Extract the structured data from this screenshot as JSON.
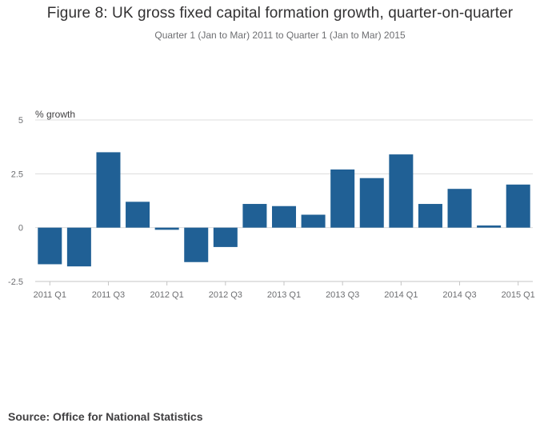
{
  "title": "Figure 8: UK gross fixed capital formation growth, quarter-on-quarter",
  "subtitle": "Quarter 1 (Jan to Mar) 2011 to Quarter 1 (Jan to Mar) 2015",
  "source": "Source: Office for National Statistics",
  "colors": {
    "bar": "#206095",
    "grid": "#dcdcdc",
    "axis_text": "#6d6e71"
  },
  "chart_data": {
    "type": "bar",
    "title": "Figure 8: UK gross fixed capital formation growth, quarter-on-quarter",
    "subtitle": "Quarter 1 (Jan to Mar) 2011 to Quarter 1 (Jan to Mar) 2015",
    "ylabel": "% growth",
    "xlabel": "",
    "ylim": [
      -2.5,
      5
    ],
    "yticks": [
      5,
      2.5,
      0,
      -2.5
    ],
    "ytick_labels": [
      "5",
      "2.5",
      "0",
      "-2.5"
    ],
    "grid": true,
    "categories": [
      "2011 Q1",
      "2011 Q2",
      "2011 Q3",
      "2011 Q4",
      "2012 Q1",
      "2012 Q2",
      "2012 Q3",
      "2012 Q4",
      "2013 Q1",
      "2013 Q2",
      "2013 Q3",
      "2013 Q4",
      "2014 Q1",
      "2014 Q2",
      "2014 Q3",
      "2014 Q4",
      "2015 Q1"
    ],
    "xtick_labels": [
      "2011 Q1",
      "2011 Q3",
      "2012 Q1",
      "2012 Q3",
      "2013 Q1",
      "2013 Q3",
      "2014 Q1",
      "2014 Q3",
      "2015 Q1"
    ],
    "values": [
      -1.7,
      -1.8,
      3.5,
      1.2,
      -0.1,
      -1.6,
      -0.9,
      1.1,
      1.0,
      0.6,
      2.7,
      2.3,
      3.4,
      1.1,
      1.8,
      0.1,
      2.0
    ]
  }
}
